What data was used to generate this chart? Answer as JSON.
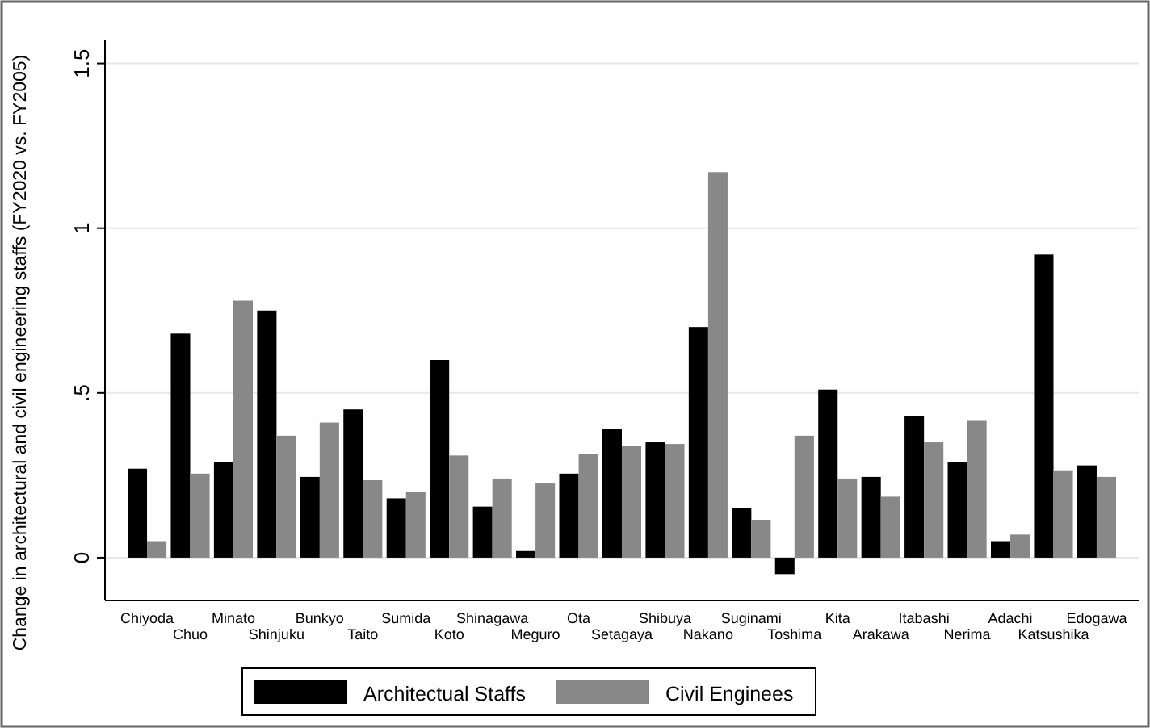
{
  "chart_data": {
    "type": "bar",
    "ylabel": "Change in architectural and civil engineering staffs (FY2020 vs. FY2005)",
    "categories": [
      "Chiyoda",
      "Chuo",
      "Minato",
      "Shinjuku",
      "Bunkyo",
      "Taito",
      "Sumida",
      "Koto",
      "Shinagawa",
      "Meguro",
      "Ota",
      "Setagaya",
      "Shibuya",
      "Nakano",
      "Suginami",
      "Toshima",
      "Kita",
      "Arakawa",
      "Itabashi",
      "Nerima",
      "Adachi",
      "Katsushika",
      "Edogawa"
    ],
    "series": [
      {
        "name": "Architectual Staffs",
        "color": "#000000",
        "values": [
          0.27,
          0.68,
          0.29,
          0.75,
          0.245,
          0.45,
          0.18,
          0.6,
          0.155,
          0.02,
          0.255,
          0.39,
          0.35,
          0.7,
          0.15,
          -0.05,
          0.51,
          0.245,
          0.43,
          0.29,
          0.05,
          0.92,
          0.28
        ]
      },
      {
        "name": "Civil Enginees",
        "color": "#888888",
        "values": [
          0.05,
          0.255,
          0.78,
          0.37,
          0.41,
          0.235,
          0.2,
          0.31,
          0.24,
          0.225,
          0.315,
          0.34,
          0.345,
          1.17,
          0.115,
          0.37,
          0.24,
          0.185,
          0.35,
          0.415,
          0.07,
          0.265,
          0.245
        ]
      }
    ],
    "ylim": [
      -0.13,
      1.57
    ],
    "yticks": [
      0,
      {
        "value": 0.5,
        "label": ".5"
      },
      1,
      1.5
    ],
    "grid": "y",
    "legend": "bottom"
  }
}
